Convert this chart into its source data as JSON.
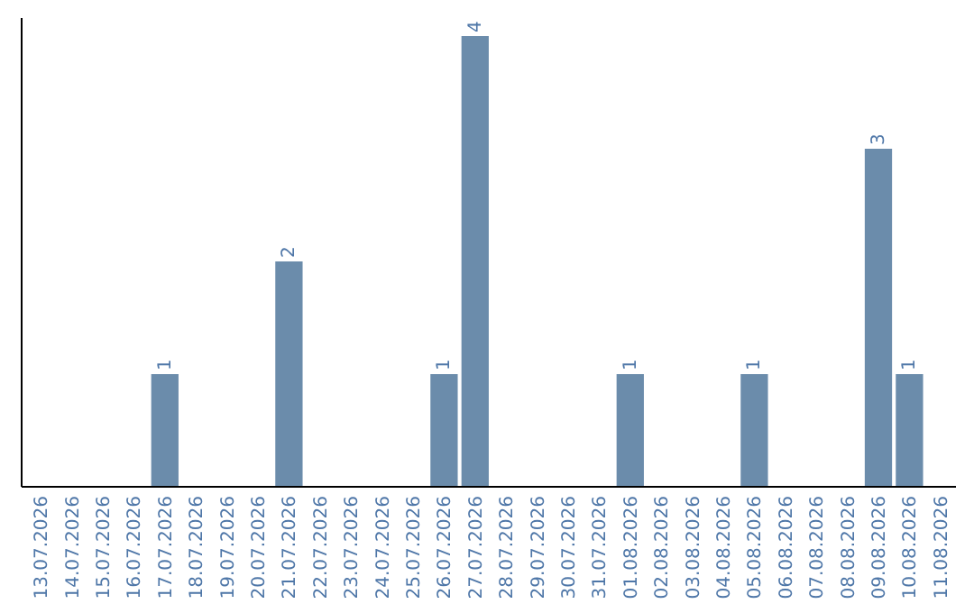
{
  "chart_data": {
    "type": "bar",
    "categories": [
      "13.07.2026",
      "14.07.2026",
      "15.07.2026",
      "16.07.2026",
      "17.07.2026",
      "18.07.2026",
      "19.07.2026",
      "20.07.2026",
      "21.07.2026",
      "22.07.2026",
      "23.07.2026",
      "24.07.2026",
      "25.07.2026",
      "26.07.2026",
      "27.07.2026",
      "28.07.2026",
      "29.07.2026",
      "30.07.2026",
      "31.07.2026",
      "01.08.2026",
      "02.08.2026",
      "03.08.2026",
      "04.08.2026",
      "05.08.2026",
      "06.08.2026",
      "07.08.2026",
      "08.08.2026",
      "09.08.2026",
      "10.08.2026",
      "11.08.2026"
    ],
    "values": [
      0,
      0,
      0,
      0,
      1,
      0,
      0,
      0,
      2,
      0,
      0,
      0,
      0,
      1,
      4,
      0,
      0,
      0,
      0,
      1,
      0,
      0,
      0,
      1,
      0,
      0,
      0,
      3,
      1,
      0
    ],
    "value_labels": [
      null,
      null,
      null,
      null,
      "1",
      null,
      null,
      null,
      "2",
      null,
      null,
      null,
      null,
      "1",
      "4",
      null,
      null,
      null,
      null,
      "1",
      null,
      null,
      null,
      "1",
      null,
      null,
      null,
      "3",
      "1",
      null
    ],
    "color": "#6b8cab",
    "tick_labels": "x"
  }
}
